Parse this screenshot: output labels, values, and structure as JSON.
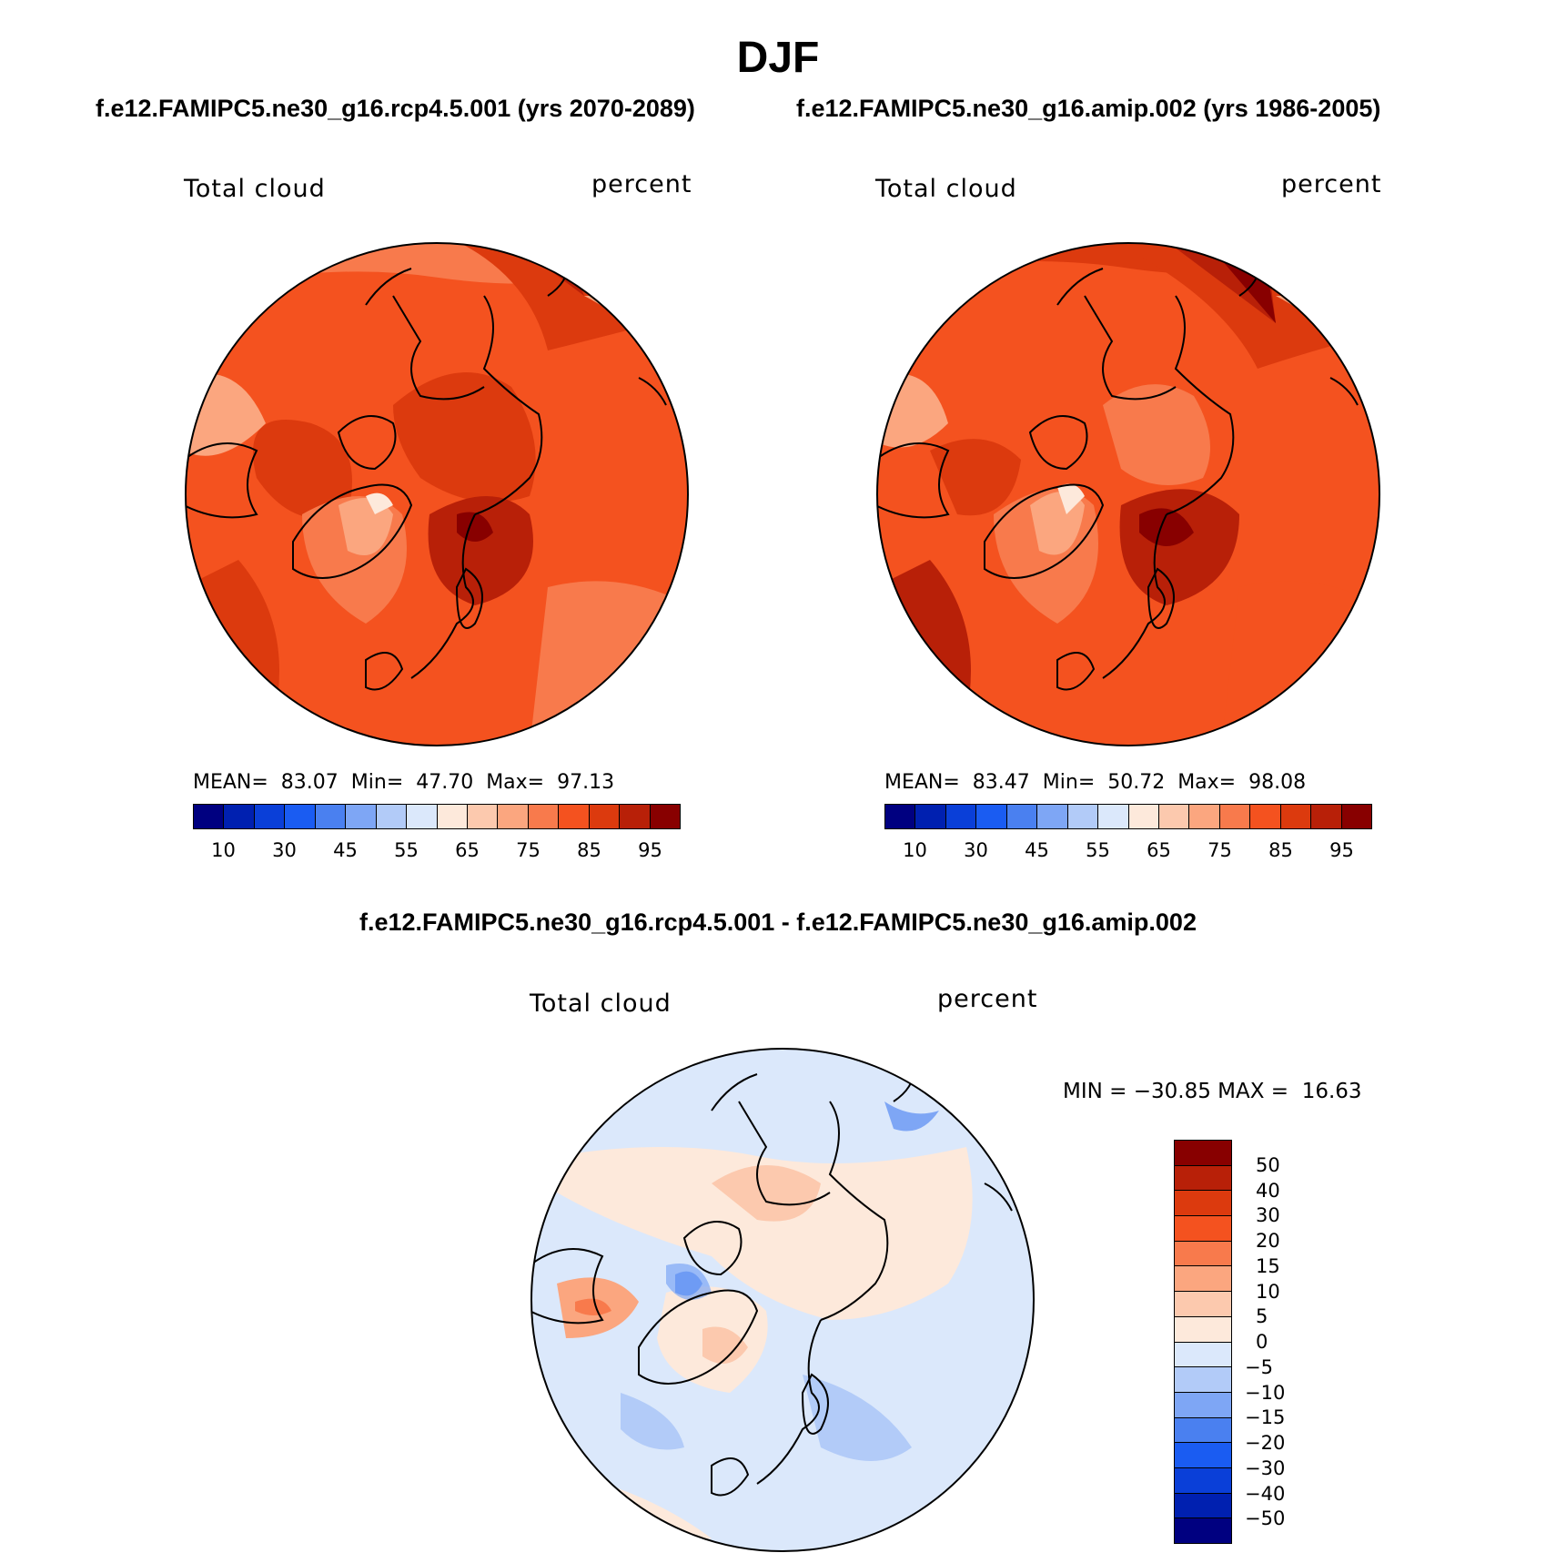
{
  "page": {
    "title": "DJF",
    "subtitle_left": "f.e12.FAMIPC5.ne30_g16.rcp4.5.001 (yrs 2070-2089)",
    "subtitle_right": "f.e12.FAMIPC5.ne30_g16.amip.002 (yrs 1986-2005)",
    "diff_title": "f.e12.FAMIPC5.ne30_g16.rcp4.5.001 - f.e12.FAMIPC5.ne30_g16.amip.002"
  },
  "panels": [
    {
      "variable": "Total cloud",
      "units": "percent",
      "stats": "MEAN=  83.07  Min=  47.70  Max=  97.13",
      "mean": 83.07,
      "min": 47.7,
      "max": 97.13
    },
    {
      "variable": "Total cloud",
      "units": "percent",
      "stats": "MEAN=  83.47  Min=  50.72  Max=  98.08",
      "mean": 83.47,
      "min": 50.72,
      "max": 98.08
    }
  ],
  "diff_panel": {
    "variable": "Total cloud",
    "units": "percent",
    "stats": "MIN = −30.85 MAX =  16.63",
    "min": -30.85,
    "max": 16.63
  },
  "colorbar_abs": {
    "tick_labels": [
      "10",
      "30",
      "45",
      "55",
      "65",
      "75",
      "85",
      "95"
    ],
    "colors": [
      "#000080",
      "#0020b0",
      "#0a3fd8",
      "#1a5cf2",
      "#4a80f0",
      "#7ea6f5",
      "#b2cbf8",
      "#dbe8fb",
      "#fde9db",
      "#fcc9ae",
      "#fba67f",
      "#f87a4c",
      "#f4521f",
      "#dc3a0e",
      "#b82008",
      "#880000"
    ]
  },
  "colorbar_diff": {
    "tick_labels": [
      "50",
      "40",
      "30",
      "20",
      "15",
      "10",
      "5",
      "0",
      "−5",
      "−10",
      "−15",
      "−20",
      "−30",
      "−40",
      "−50"
    ],
    "colors": [
      "#880000",
      "#b82008",
      "#dc3a0e",
      "#f4521f",
      "#f87a4c",
      "#fba67f",
      "#fcc9ae",
      "#fde9db",
      "#dbe8fb",
      "#b2cbf8",
      "#7ea6f5",
      "#4a80f0",
      "#1a5cf2",
      "#0a3fd8",
      "#0020b0",
      "#000080"
    ]
  }
}
